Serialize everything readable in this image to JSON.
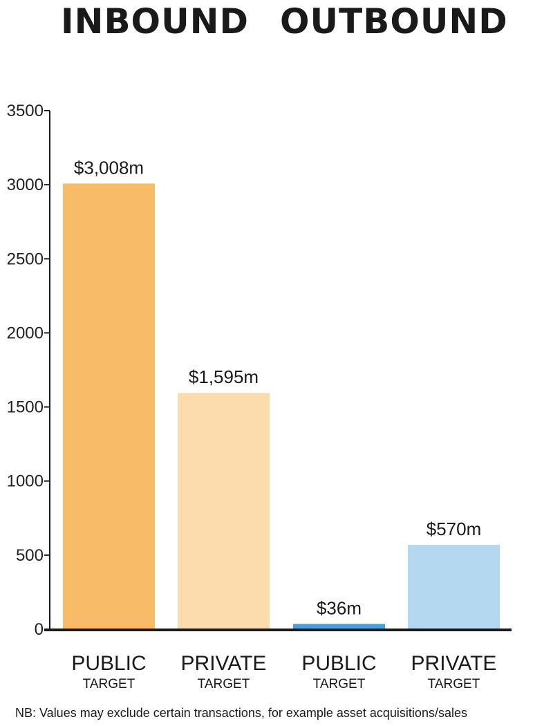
{
  "headings": {
    "inbound": "INBOUND",
    "outbound": "OUTBOUND"
  },
  "footnote": "NB: Values may exclude certain transactions, for example asset acquisitions/sales",
  "colors": {
    "inbound_public": "#F8BB67",
    "inbound_private": "#FCDCAD",
    "outbound_public": "#4A9FD4",
    "outbound_private": "#B5D8F1",
    "axis": "#1a1a1a"
  },
  "chart_data": {
    "type": "bar",
    "ylim": [
      0,
      3500
    ],
    "yticks": [
      0,
      500,
      1000,
      1500,
      2000,
      2500,
      3000,
      3500
    ],
    "grid": false,
    "bars": [
      {
        "group": "INBOUND",
        "label": "PUBLIC",
        "sublabel": "TARGET",
        "value": 3008,
        "data_label": "$3,008m",
        "color_key": "inbound_public"
      },
      {
        "group": "INBOUND",
        "label": "PRIVATE",
        "sublabel": "TARGET",
        "value": 1595,
        "data_label": "$1,595m",
        "color_key": "inbound_private"
      },
      {
        "group": "OUTBOUND",
        "label": "PUBLIC",
        "sublabel": "TARGET",
        "value": 36,
        "data_label": "$36m",
        "color_key": "outbound_public"
      },
      {
        "group": "OUTBOUND",
        "label": "PRIVATE",
        "sublabel": "TARGET",
        "value": 570,
        "data_label": "$570m",
        "color_key": "outbound_private"
      }
    ]
  }
}
